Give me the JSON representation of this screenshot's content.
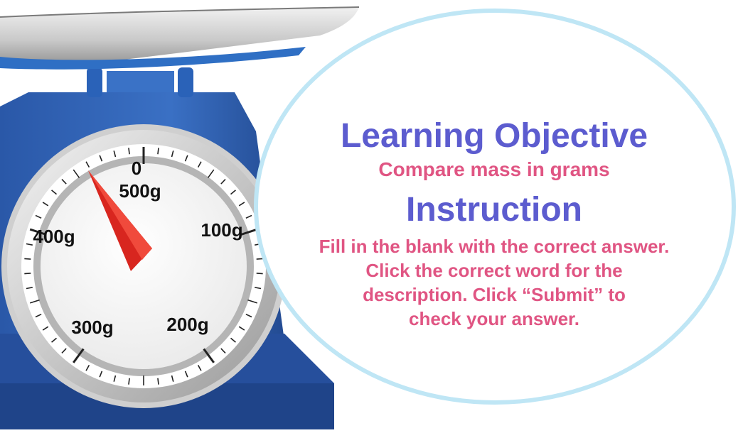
{
  "colors": {
    "heading": "#5c5ccf",
    "body": "#e05583",
    "scale_blue": "#2f63b6",
    "bubble_border": "#bfe6f5",
    "needle": "#d8261f"
  },
  "dial": {
    "labels": {
      "zero": "0",
      "max": "500g",
      "g100": "100g",
      "g200": "200g",
      "g300": "300g",
      "g400": "400g"
    }
  },
  "content": {
    "objective_title": "Learning Objective",
    "objective_text": "Compare mass in grams",
    "instruction_title": "Instruction",
    "instruction_lines": [
      "Fill in the blank with the correct answer.",
      "Click the correct word for the",
      "description. Click “Submit” to",
      "check your answer."
    ]
  }
}
